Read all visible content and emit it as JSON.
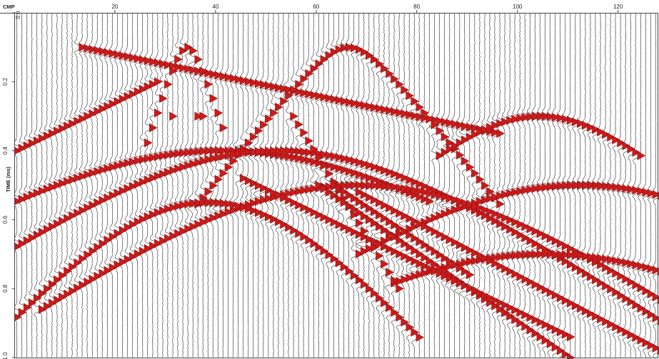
{
  "chart_data": {
    "type": "scatter",
    "title": "",
    "x_axis": {
      "label": "CMP",
      "range": [
        0,
        128
      ],
      "ticks": [
        20,
        40,
        60,
        80,
        100,
        120
      ],
      "tick_labels": [
        "20",
        "40",
        "60",
        "80",
        "100",
        "120"
      ],
      "position": "top"
    },
    "y_axis": {
      "label": "TIME (ms)",
      "range": [
        0.0,
        1.0
      ],
      "ticks": [
        0.0,
        0.2,
        0.4,
        0.6,
        0.8,
        1.0
      ],
      "tick_labels": [
        "0.0",
        "0.2",
        "0.4",
        "0.6",
        "0.8",
        "1.0"
      ],
      "direction": "down"
    },
    "trace_count": 128,
    "trace_color": "#1a1a1a",
    "wavelet_fill_color": "#cc1a1a",
    "events": [
      {
        "kind": "line",
        "cmp": [
          13,
          96
        ],
        "time": [
          0.1,
          0.35
        ]
      },
      {
        "kind": "hyperbola",
        "apex_cmp": 34,
        "apex_time": 0.1,
        "v": 22,
        "cmp_range": [
          26,
          41
        ]
      },
      {
        "kind": "hyperbola",
        "apex_cmp": 66,
        "apex_time": 0.1,
        "v": 55,
        "cmp_range": [
          36,
          96
        ]
      },
      {
        "kind": "hyperbola",
        "apex_cmp": 104,
        "apex_time": 0.3,
        "v": 70,
        "cmp_range": [
          84,
          124
        ]
      },
      {
        "kind": "hyperbola",
        "apex_cmp": 41,
        "apex_time": 0.4,
        "v": 110,
        "cmp_range": [
          0,
          82
        ]
      },
      {
        "kind": "hyperbola",
        "apex_cmp": 52,
        "apex_time": 0.4,
        "v": 95,
        "cmp_range": [
          0,
          128
        ]
      },
      {
        "kind": "hyperbola",
        "apex_cmp": 112,
        "apex_time": 0.5,
        "v": 90,
        "cmp_range": [
          68,
          128
        ]
      },
      {
        "kind": "hyperbola",
        "apex_cmp": 68,
        "apex_time": 0.5,
        "v": 90,
        "cmp_range": [
          5,
          128
        ]
      },
      {
        "kind": "hyperbola",
        "apex_cmp": 105,
        "apex_time": 0.7,
        "v": 85,
        "cmp_range": [
          75,
          128
        ]
      },
      {
        "kind": "hyperbola",
        "apex_cmp": 38,
        "apex_time": 0.55,
        "v": 55,
        "cmp_range": [
          0,
          80
        ]
      },
      {
        "kind": "line",
        "cmp": [
          55,
          76
        ],
        "time": [
          0.3,
          0.8
        ]
      },
      {
        "kind": "line",
        "cmp": [
          63,
          90
        ],
        "time": [
          0.5,
          0.76
        ]
      },
      {
        "kind": "line",
        "cmp": [
          60,
          110
        ],
        "time": [
          0.5,
          1.0
        ]
      },
      {
        "kind": "line",
        "cmp": [
          68,
          128
        ],
        "time": [
          0.52,
          0.98
        ]
      },
      {
        "kind": "line",
        "cmp": [
          0,
          28
        ],
        "time": [
          0.4,
          0.2
        ]
      },
      {
        "kind": "line",
        "cmp": [
          45,
          110
        ],
        "time": [
          0.48,
          0.94
        ]
      },
      {
        "kind": "points",
        "cmp": [
          31,
          36,
          37
        ],
        "time": [
          0.3,
          0.3,
          0.3
        ]
      }
    ]
  }
}
